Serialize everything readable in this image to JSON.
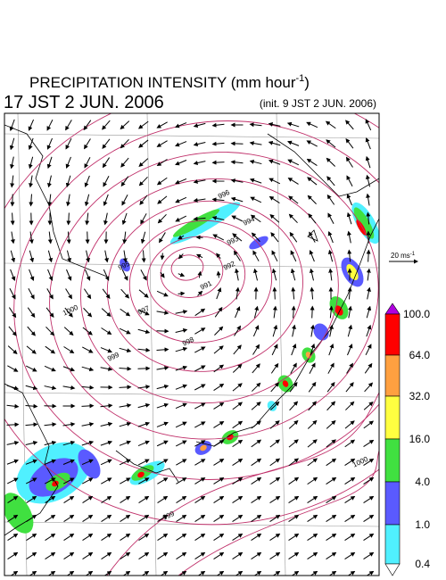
{
  "header": {
    "title": "PRECIPITATION INTENSITY (mm hour",
    "title_exponent": "-1",
    "title_close": ")",
    "valid_time": "17 JST 2 JUN. 2006",
    "init_time": "(init. 9 JST 2 JUN. 2006)"
  },
  "reference_vector": {
    "label": "20 ms",
    "exponent": "-1"
  },
  "colorbar": {
    "labels": [
      "100.0",
      "64.0",
      "32.0",
      "16.0",
      "4.0",
      "1.0",
      "0.4"
    ]
  },
  "contour_labels": [
    "996",
    "994",
    "993",
    "992",
    "991",
    "995",
    "997",
    "998",
    "999",
    "1000",
    "999",
    "1000"
  ]
}
